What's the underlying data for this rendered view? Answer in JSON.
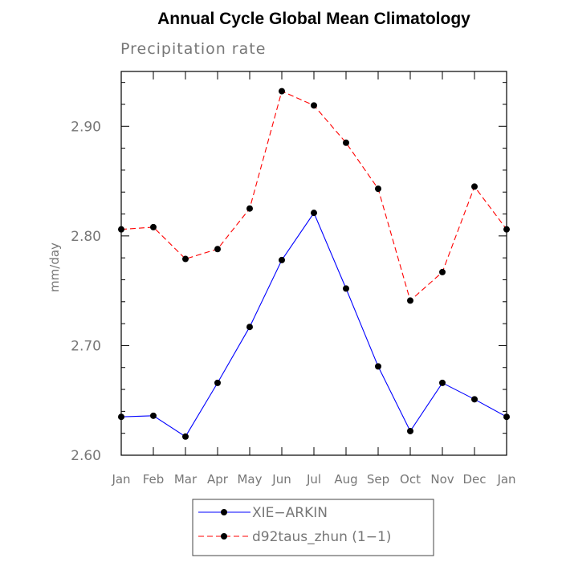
{
  "chart_data": {
    "type": "line",
    "title": "Annual Cycle Global Mean Climatology",
    "subtitle": "Precipitation rate",
    "xlabel": "",
    "ylabel": "mm/day",
    "categories": [
      "Jan",
      "Feb",
      "Mar",
      "Apr",
      "May",
      "Jun",
      "Jul",
      "Aug",
      "Sep",
      "Oct",
      "Nov",
      "Dec",
      "Jan"
    ],
    "ylim": [
      2.6,
      2.95
    ],
    "yticks": [
      2.6,
      2.7,
      2.8,
      2.9
    ],
    "ytick_labels": [
      "2.60",
      "2.70",
      "2.80",
      "2.90"
    ],
    "grid": false,
    "legend_position": "bottom",
    "series": [
      {
        "name": "XIE−ARKIN",
        "color": "#0000ff",
        "line_style": "solid",
        "values": [
          2.635,
          2.636,
          2.617,
          2.666,
          2.717,
          2.778,
          2.821,
          2.752,
          2.681,
          2.622,
          2.666,
          2.651,
          2.635
        ]
      },
      {
        "name": "d92taus_zhun (1−1)",
        "color": "#ff0000",
        "line_style": "dashed",
        "values": [
          2.806,
          2.808,
          2.779,
          2.788,
          2.825,
          2.932,
          2.919,
          2.885,
          2.843,
          2.741,
          2.767,
          2.845,
          2.806
        ]
      }
    ]
  }
}
